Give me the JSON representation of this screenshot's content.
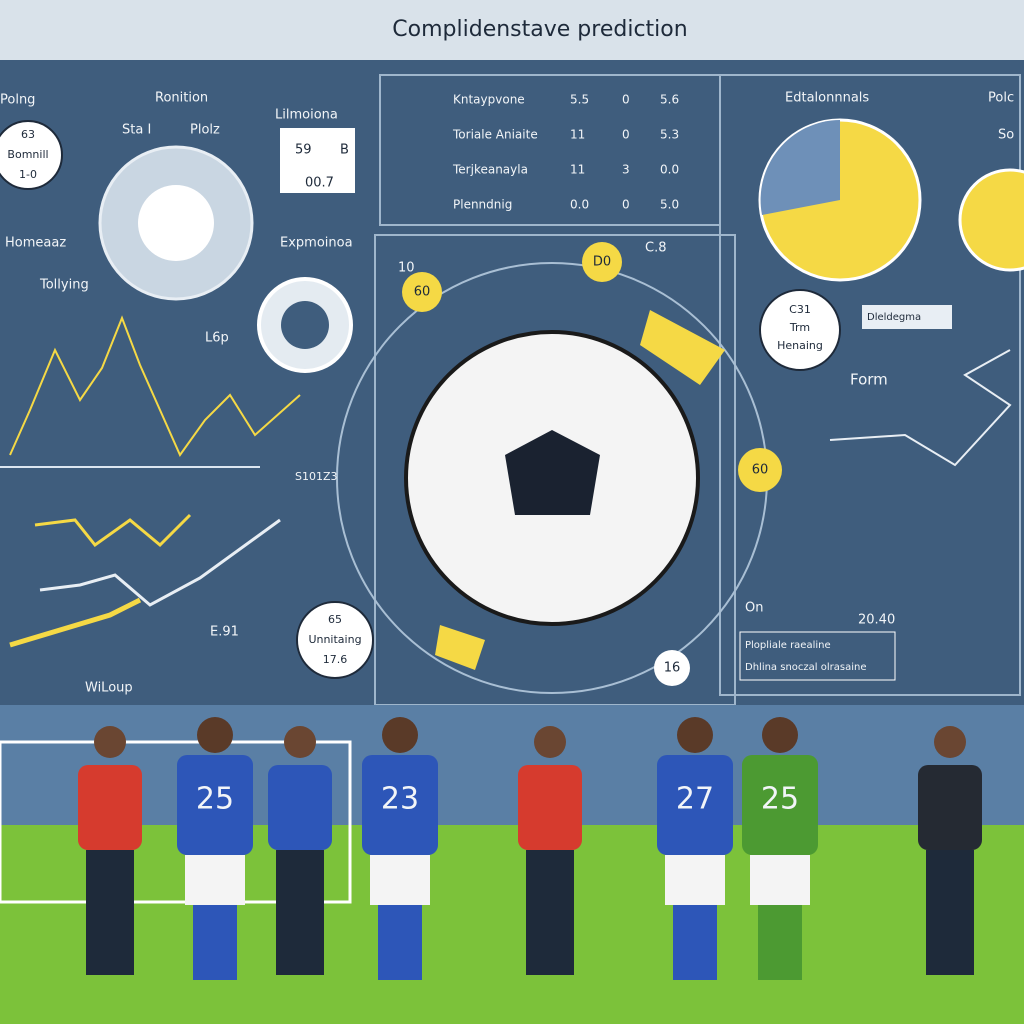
{
  "header": {
    "title": "Complidenstave prediction"
  },
  "panels": {
    "left": {
      "label_a": "Polng",
      "label_b": "Ronition",
      "badge": [
        "63",
        "Bomnill",
        "1-0"
      ],
      "gauge_a": "Sta I",
      "gauge_b": "Plolz",
      "score_label": "Lilmoiona",
      "score": [
        "59",
        "B",
        "00.7"
      ],
      "home": "Homeaaz",
      "trend": "Tollying",
      "exp": "Expmoinoa",
      "lap": "L6p",
      "axis": "S101Z3",
      "bottom": "WiLoup",
      "note": [
        "65",
        "Unnitaing",
        "17.6"
      ],
      "side": "E.91"
    },
    "table": {
      "rows": [
        [
          "Kntaypvone",
          "5.5",
          "0",
          "5.6"
        ],
        [
          "Toriale Aniaite",
          "11",
          "0",
          "5.3"
        ],
        [
          "Terjkeanayla",
          "11",
          "3",
          "0.0"
        ],
        [
          "Plenndnig",
          "0.0",
          "0",
          "5.0"
        ]
      ]
    },
    "center": {
      "badge_a": "60",
      "badge_b": "D0",
      "tag_a": "10",
      "tag_b": "C.8",
      "badge_c": "60",
      "badge_d": "16",
      "tag_c": "On"
    },
    "right": {
      "label_a": "Edtalonnnals",
      "label_b": "Polc",
      "label_c": "So",
      "team": [
        "C31",
        "Trm",
        "Henaing"
      ],
      "tag": "Dleldegma",
      "form": "Form",
      "score": "20.40",
      "list": [
        "Plopliale raealine",
        "Dhlina snoczal olrasaine"
      ]
    }
  },
  "players": [
    "25",
    "23",
    "27",
    "25"
  ]
}
